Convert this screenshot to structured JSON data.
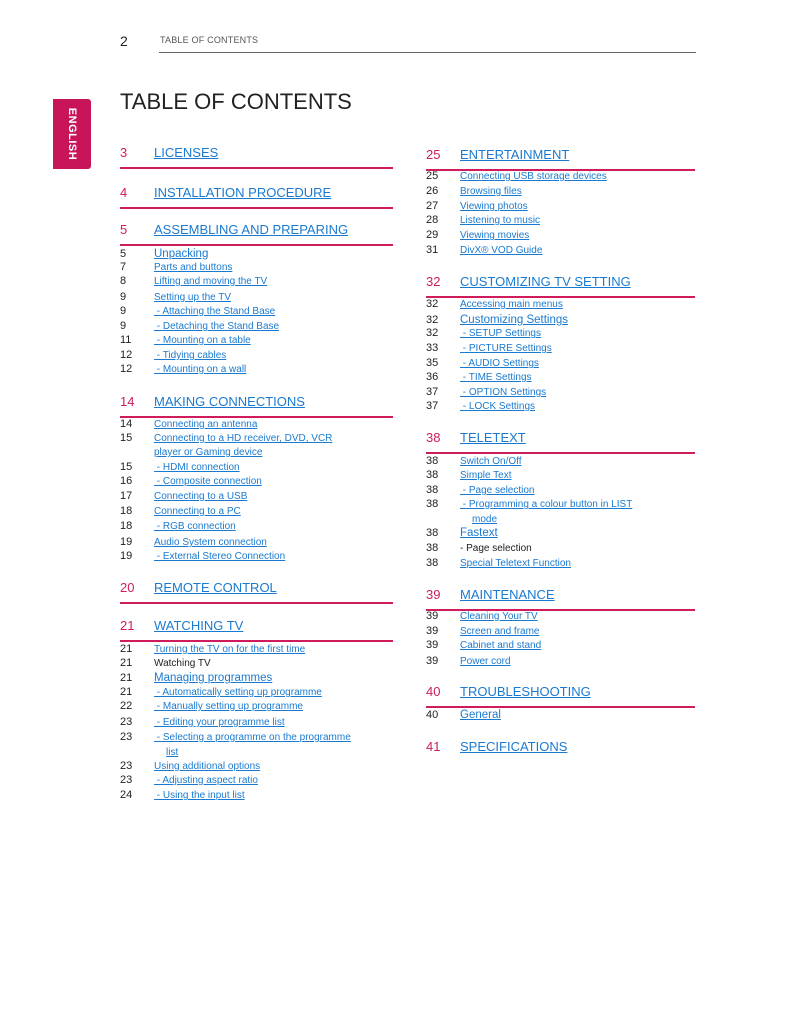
{
  "header": {
    "page_number": "2",
    "running_title": "TABLE OF CONTENTS"
  },
  "language_tab": "ENGLISH",
  "title": "TABLE OF CONTENTS",
  "colors": {
    "accent": "#d01c5c",
    "link": "#1a7ad0"
  },
  "left_column": [
    {
      "k": "h",
      "n": "3",
      "t": "LICENSES"
    },
    {
      "k": "h",
      "n": "4",
      "t": "INSTALLATION PROCEDURE"
    },
    {
      "k": "h",
      "n": "5",
      "t": "ASSEMBLING AND PREPARING"
    },
    {
      "k": "L",
      "n": "5",
      "t": "Unpacking"
    },
    {
      "k": "l",
      "n": "7",
      "t": "Parts and buttons"
    },
    {
      "k": "l",
      "n": "8",
      "t": "Lifting and moving the TV"
    },
    {
      "k": "l",
      "n": "9",
      "t": "Setting up the TV"
    },
    {
      "k": "l",
      "n": "9",
      "t": " - Attaching the Stand Base"
    },
    {
      "k": "l",
      "n": "9",
      "t": " - Detaching the Stand Base"
    },
    {
      "k": "l",
      "n": "11",
      "t": " - Mounting on a table"
    },
    {
      "k": "l",
      "n": "12",
      "t": " - Tidying cables"
    },
    {
      "k": "l",
      "n": "12",
      "t": " - Mounting on a wall"
    },
    {
      "k": "h",
      "n": "14",
      "t": "MAKING CONNECTIONS"
    },
    {
      "k": "l",
      "n": "14",
      "t": "Connecting an antenna"
    },
    {
      "k": "l",
      "n": "15",
      "t": "Connecting to a HD receiver, DVD, VCR"
    },
    {
      "k": "l",
      "n": "",
      "t": "player or Gaming device"
    },
    {
      "k": "l",
      "n": "15",
      "t": " - HDMI connection"
    },
    {
      "k": "l",
      "n": "16",
      "t": " - Composite connection"
    },
    {
      "k": "l",
      "n": "17",
      "t": "Connecting to a USB"
    },
    {
      "k": "l",
      "n": "18",
      "t": "Connecting to a PC"
    },
    {
      "k": "l",
      "n": "18",
      "t": " - RGB connection"
    },
    {
      "k": "l",
      "n": "19",
      "t": "Audio System connection"
    },
    {
      "k": "l",
      "n": "19",
      "t": " - External Stereo Connection"
    },
    {
      "k": "h",
      "n": "20",
      "t": "REMOTE CONTROL"
    },
    {
      "k": "h",
      "n": "21",
      "t": "WATCHING TV"
    },
    {
      "k": "l",
      "n": "21",
      "t": "Turning the TV on for the first time"
    },
    {
      "k": "t",
      "n": "21",
      "t": "Watching TV"
    },
    {
      "k": "L",
      "n": "21",
      "t": "Managing programmes"
    },
    {
      "k": "l",
      "n": "21",
      "t": " - Automatically setting up programme"
    },
    {
      "k": "l",
      "n": "22",
      "t": " - Manually setting up programme"
    },
    {
      "k": "l",
      "n": "23",
      "t": " - Editing your programme list"
    },
    {
      "k": "l",
      "n": "23",
      "t": " - Selecting a programme on the programme"
    },
    {
      "k": "c",
      "n": "",
      "t": "list"
    },
    {
      "k": "l",
      "n": "23",
      "t": "Using additional options"
    },
    {
      "k": "l",
      "n": "23",
      "t": " - Adjusting aspect ratio"
    },
    {
      "k": "l",
      "n": "24",
      "t": " - Using the input list"
    }
  ],
  "right_column": [
    {
      "k": "h",
      "n": "25",
      "t": "ENTERTAINMENT"
    },
    {
      "k": "l",
      "n": "25",
      "t": "Connecting USB storage devices"
    },
    {
      "k": "l",
      "n": "26",
      "t": "Browsing files"
    },
    {
      "k": "l",
      "n": "27",
      "t": "Viewing photos"
    },
    {
      "k": "l",
      "n": "28",
      "t": "Listening to music"
    },
    {
      "k": "l",
      "n": "29",
      "t": "Viewing movies"
    },
    {
      "k": "l",
      "n": "31",
      "t": "DivX® VOD Guide"
    },
    {
      "k": "h",
      "n": "32",
      "t": "CUSTOMIZING TV SETTING"
    },
    {
      "k": "l",
      "n": "32",
      "t": "Accessing main menus"
    },
    {
      "k": "L",
      "n": "32",
      "t": "Customizing Settings"
    },
    {
      "k": "l",
      "n": "32",
      "t": " - SETUP Settings"
    },
    {
      "k": "l",
      "n": "33",
      "t": " - PICTURE Settings"
    },
    {
      "k": "l",
      "n": "35",
      "t": " - AUDIO Settings"
    },
    {
      "k": "l",
      "n": "36",
      "t": " - TIME Settings"
    },
    {
      "k": "l",
      "n": "37",
      "t": " - OPTION Settings"
    },
    {
      "k": "l",
      "n": "37",
      "t": " - LOCK Settings"
    },
    {
      "k": "h",
      "n": "38",
      "t": "TELETEXT"
    },
    {
      "k": "l",
      "n": "38",
      "t": "Switch On/Off"
    },
    {
      "k": "l",
      "n": "38",
      "t": "Simple Text"
    },
    {
      "k": "l",
      "n": "38",
      "t": " - Page selection"
    },
    {
      "k": "l",
      "n": "38",
      "t": " - Programming a colour button in LIST"
    },
    {
      "k": "c",
      "n": "",
      "t": "mode"
    },
    {
      "k": "L",
      "n": "38",
      "t": "Fastext"
    },
    {
      "k": "t",
      "n": "38",
      "t": "- Page selection"
    },
    {
      "k": "l",
      "n": "38",
      "t": "Special Teletext Function"
    },
    {
      "k": "h",
      "n": "39",
      "t": "MAINTENANCE"
    },
    {
      "k": "l",
      "n": "39",
      "t": "Cleaning Your TV"
    },
    {
      "k": "l",
      "n": "39",
      "t": "Screen and frame"
    },
    {
      "k": "l",
      "n": "39",
      "t": "Cabinet and stand"
    },
    {
      "k": "l",
      "n": "39",
      "t": "Power cord"
    },
    {
      "k": "h",
      "n": "40",
      "t": "TROUBLESHOOTING"
    },
    {
      "k": "L",
      "n": "40",
      "t": "General"
    },
    {
      "k": "h",
      "n": "41",
      "t": "SPECIFICATIONS"
    }
  ]
}
